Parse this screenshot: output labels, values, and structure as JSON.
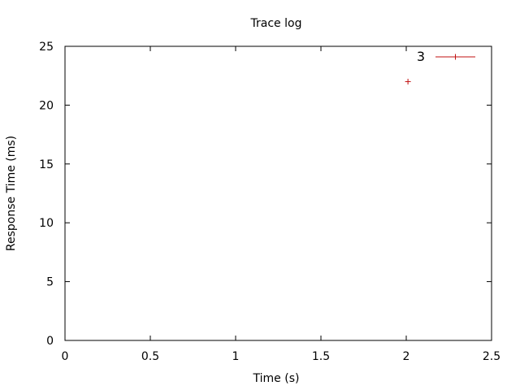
{
  "chart_data": {
    "type": "scatter",
    "title": "Trace log",
    "xlabel": "Time (s)",
    "ylabel": "Response Time (ms)",
    "xlim": [
      0,
      2.5
    ],
    "ylim": [
      0,
      25
    ],
    "xticks": [
      0,
      0.5,
      1,
      1.5,
      2,
      2.5
    ],
    "yticks": [
      0,
      5,
      10,
      15,
      20,
      25
    ],
    "xtick_labels": [
      "0",
      "0.5",
      "1",
      "1.5",
      "2",
      "2.5"
    ],
    "ytick_labels": [
      "0",
      "5",
      "10",
      "15",
      "20",
      "25"
    ],
    "grid": false,
    "legend_position": "top-right",
    "series": [
      {
        "name": "3",
        "color": "#c01010",
        "marker": "plus",
        "points": [
          {
            "x": 2.01,
            "y": 22
          }
        ]
      }
    ]
  }
}
